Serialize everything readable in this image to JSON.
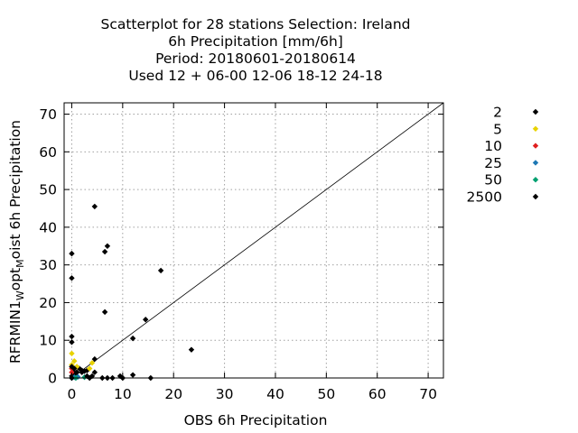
{
  "chart_data": {
    "type": "scatter",
    "title_lines": [
      "Scatterplot for   28 stations Selection: Ireland",
      "6h Precipitation [mm/6h]",
      "Period: 20180601-20180614",
      "Used  12 + 06-00 12-06 18-12 24-18"
    ],
    "xlabel": "OBS 6h Precipitation",
    "ylabel_main": "RFRMIN1",
    "ylabel_sub1": "W",
    "ylabel_mid": "opt",
    "ylabel_sub2": "M",
    "ylabel_end": "oist 6h Precipitation",
    "xlim": [
      -1.5,
      73
    ],
    "ylim": [
      0,
      73
    ],
    "xticks": [
      "0",
      "10",
      "20",
      "30",
      "40",
      "50",
      "60",
      "70"
    ],
    "yticks": [
      "0",
      "10",
      "20",
      "30",
      "40",
      "50",
      "60",
      "70"
    ],
    "grid": true,
    "legend_position": "right",
    "diagonal_line": [
      [
        0,
        0
      ],
      [
        73,
        73
      ]
    ],
    "series": [
      {
        "name": "2",
        "color": "#000000",
        "points": [
          [
            0,
            0.5
          ],
          [
            0.5,
            1.0
          ],
          [
            1.0,
            1.5
          ],
          [
            1.5,
            2.5
          ],
          [
            2.0,
            1.5
          ],
          [
            3.0,
            2.0
          ],
          [
            0.3,
            1.8
          ]
        ]
      },
      {
        "name": "5",
        "color": "#e8d200",
        "points": [
          [
            0,
            3.5
          ],
          [
            0,
            6.5
          ],
          [
            1.0,
            3.0
          ],
          [
            3.5,
            2.5
          ],
          [
            4.0,
            4.0
          ],
          [
            0.5,
            4.5
          ]
        ]
      },
      {
        "name": "10",
        "color": "#e02020",
        "points": [
          [
            0,
            2.5
          ],
          [
            0,
            1.5
          ]
        ]
      },
      {
        "name": "25",
        "color": "#1e78b4",
        "points": [
          [
            0,
            0
          ],
          [
            0.5,
            0.2
          ],
          [
            1.2,
            0.3
          ]
        ]
      },
      {
        "name": "50",
        "color": "#00a070",
        "points": [
          [
            0.8,
            0
          ],
          [
            2.5,
            0.2
          ]
        ]
      },
      {
        "name": "2500",
        "color": "#000000",
        "points": [
          [
            0,
            33
          ],
          [
            0,
            26.5
          ],
          [
            0,
            11
          ],
          [
            0,
            9.5
          ],
          [
            0,
            3
          ],
          [
            0,
            0
          ],
          [
            4.5,
            45.5
          ],
          [
            7,
            35
          ],
          [
            6.5,
            33.5
          ],
          [
            6.5,
            17.5
          ],
          [
            17.5,
            28.5
          ],
          [
            14.5,
            15.5
          ],
          [
            12,
            10.5
          ],
          [
            23.5,
            7.5
          ],
          [
            4.5,
            5
          ],
          [
            4.5,
            1.5
          ],
          [
            3,
            0.5
          ],
          [
            6,
            0
          ],
          [
            7,
            0
          ],
          [
            8,
            0
          ],
          [
            9.5,
            0.5
          ],
          [
            10,
            0
          ],
          [
            12,
            0.8
          ],
          [
            15.5,
            0
          ],
          [
            3.5,
            0
          ],
          [
            2,
            2
          ],
          [
            1,
            1.5
          ],
          [
            0.5,
            2.5
          ],
          [
            4,
            0.5
          ],
          [
            2.5,
            1.8
          ]
        ]
      }
    ]
  }
}
